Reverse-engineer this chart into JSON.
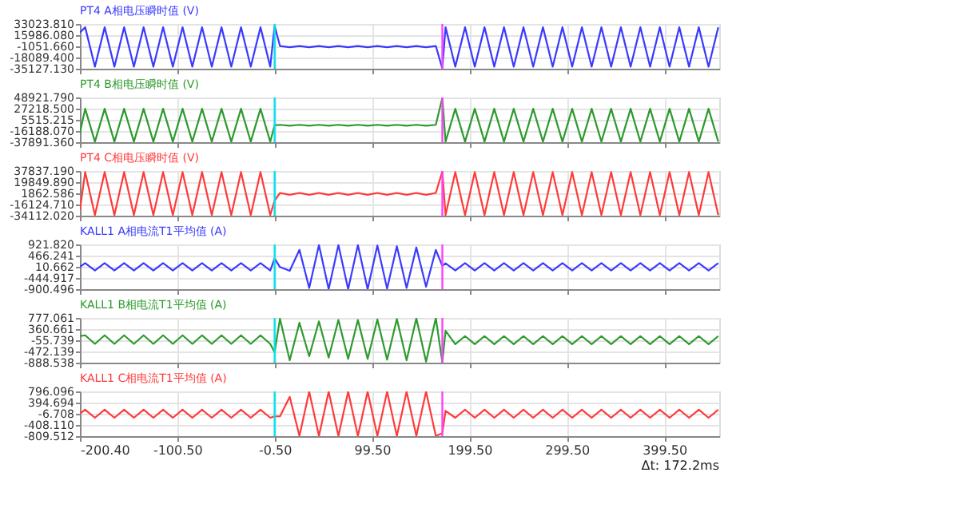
{
  "chart_data": [
    {
      "type": "line",
      "title": "PT4 A相电压瞬时值 (V)",
      "color": "#3a3aff",
      "grid": true,
      "tick_labels": "y",
      "xlim": [
        -200.4,
        456
      ],
      "ylim": [
        -35127.13,
        33023.81
      ],
      "xticks": [
        {
          "value": -200.4,
          "label": null
        },
        {
          "value": -100.5,
          "label": null
        },
        {
          "value": -0.5,
          "label": null
        },
        {
          "value": 99.5,
          "label": null
        },
        {
          "value": 199.5,
          "label": null
        },
        {
          "value": 299.5,
          "label": null
        },
        {
          "value": 399.5,
          "label": null
        }
      ],
      "yticks": [
        {
          "value": -35127.13,
          "label": "-35127.130"
        },
        {
          "value": -18089.4,
          "label": "-18089.400"
        },
        {
          "value": -1051.66,
          "label": "-1051.660"
        },
        {
          "value": 15986.08,
          "label": "15986.080"
        },
        {
          "value": 33023.81,
          "label": "33023.810"
        }
      ],
      "ref_lines": [
        {
          "axis": "x",
          "value": -0.5,
          "color": "#00e5ee"
        },
        {
          "axis": "x",
          "value": 171.7,
          "color": "#ff40ff"
        }
      ],
      "x": [
        -200.4,
        -195,
        -185,
        -175,
        -165,
        -155,
        -145,
        -135,
        -125,
        -115,
        -105,
        -95,
        -85,
        -75,
        -65,
        -55,
        -45,
        -35,
        -25,
        -15,
        -5,
        -0.5,
        5,
        15,
        25,
        35,
        45,
        55,
        65,
        75,
        85,
        95,
        105,
        115,
        125,
        135,
        145,
        155,
        165,
        171.7,
        175,
        185,
        195,
        205,
        215,
        225,
        235,
        245,
        255,
        265,
        275,
        285,
        295,
        305,
        315,
        325,
        335,
        345,
        355,
        365,
        375,
        385,
        395,
        405,
        415,
        425,
        435,
        445,
        455
      ],
      "values": [
        20000,
        28000,
        -32000,
        28000,
        -32000,
        28000,
        -32000,
        28000,
        -32000,
        28000,
        -32000,
        28000,
        -32000,
        28000,
        -32000,
        28000,
        -32000,
        28000,
        -32000,
        28000,
        -32000,
        30000,
        -500,
        -2500,
        -500,
        -2500,
        -500,
        -2500,
        -500,
        -2500,
        -500,
        -2500,
        -500,
        -2500,
        -500,
        -2500,
        -500,
        -2500,
        -500,
        -35000,
        28000,
        -32000,
        28000,
        -32000,
        28000,
        -32000,
        28000,
        -32000,
        28000,
        -32000,
        28000,
        -32000,
        28000,
        -32000,
        28000,
        -32000,
        28000,
        -32000,
        28000,
        -32000,
        28000,
        -32000,
        28000,
        -32000,
        28000,
        -32000,
        28000,
        -32000,
        28000
      ]
    },
    {
      "type": "line",
      "title": "PT4 B相电压瞬时值 (V)",
      "color": "#2e9a2e",
      "grid": true,
      "tick_labels": "y",
      "xlim": [
        -200.4,
        456
      ],
      "ylim": [
        -37891.36,
        48921.79
      ],
      "xticks": [
        {
          "value": -200.4,
          "label": null
        },
        {
          "value": -100.5,
          "label": null
        },
        {
          "value": -0.5,
          "label": null
        },
        {
          "value": 99.5,
          "label": null
        },
        {
          "value": 199.5,
          "label": null
        },
        {
          "value": 299.5,
          "label": null
        },
        {
          "value": 399.5,
          "label": null
        }
      ],
      "yticks": [
        {
          "value": -37891.36,
          "label": "-37891.360"
        },
        {
          "value": -16188.07,
          "label": "-16188.070"
        },
        {
          "value": 5515.215,
          "label": "5515.215"
        },
        {
          "value": 27218.5,
          "label": "27218.500"
        },
        {
          "value": 48921.79,
          "label": "48921.790"
        }
      ],
      "ref_lines": [
        {
          "axis": "x",
          "value": -0.5,
          "color": "#00e5ee"
        },
        {
          "axis": "x",
          "value": 171.7,
          "color": "#ff40ff"
        }
      ],
      "x": [
        -200.4,
        -195,
        -185,
        -175,
        -165,
        -155,
        -145,
        -135,
        -125,
        -115,
        -105,
        -95,
        -85,
        -75,
        -65,
        -55,
        -45,
        -35,
        -25,
        -15,
        -5,
        -0.5,
        5,
        15,
        25,
        35,
        45,
        55,
        65,
        75,
        85,
        95,
        105,
        115,
        125,
        135,
        145,
        155,
        165,
        171.7,
        175,
        185,
        195,
        205,
        215,
        225,
        235,
        245,
        255,
        265,
        275,
        285,
        295,
        305,
        315,
        325,
        335,
        345,
        355,
        365,
        375,
        385,
        395,
        405,
        415,
        425,
        435,
        445,
        455
      ],
      "values": [
        -20000,
        27000,
        -37000,
        27000,
        -37000,
        27000,
        -37000,
        27000,
        -37000,
        27000,
        -37000,
        27000,
        -37000,
        27000,
        -37000,
        27000,
        -37000,
        27000,
        -37000,
        27000,
        -37000,
        -5000,
        -4200,
        -5800,
        -4200,
        -5800,
        -4200,
        -5800,
        -4200,
        -5800,
        -4200,
        -5800,
        -4200,
        -5800,
        -4200,
        -5800,
        -4200,
        -5800,
        -4200,
        48000,
        -37000,
        27000,
        -37000,
        27000,
        -37000,
        27000,
        -37000,
        27000,
        -37000,
        27000,
        -37000,
        27000,
        -37000,
        27000,
        -37000,
        27000,
        -37000,
        27000,
        -37000,
        27000,
        -37000,
        27000,
        -37000,
        27000,
        -37000,
        27000,
        -37000,
        27000,
        -37000
      ]
    },
    {
      "type": "line",
      "title": "PT4 C相电压瞬时值 (V)",
      "color": "#ff3a3a",
      "grid": true,
      "tick_labels": "y",
      "xlim": [
        -200.4,
        456
      ],
      "ylim": [
        -34112.02,
        37837.19
      ],
      "xticks": [
        {
          "value": -200.4,
          "label": null
        },
        {
          "value": -100.5,
          "label": null
        },
        {
          "value": -0.5,
          "label": null
        },
        {
          "value": 99.5,
          "label": null
        },
        {
          "value": 199.5,
          "label": null
        },
        {
          "value": 299.5,
          "label": null
        },
        {
          "value": 399.5,
          "label": null
        }
      ],
      "yticks": [
        {
          "value": -34112.02,
          "label": "-34112.020"
        },
        {
          "value": -16124.71,
          "label": "-16124.710"
        },
        {
          "value": 1862.586,
          "label": "1862.586"
        },
        {
          "value": 19849.89,
          "label": "19849.890"
        },
        {
          "value": 37837.19,
          "label": "37837.190"
        }
      ],
      "ref_lines": [
        {
          "axis": "x",
          "value": -0.5,
          "color": "#00e5ee"
        },
        {
          "axis": "x",
          "value": 171.7,
          "color": "#ff40ff"
        }
      ],
      "x": [
        -200.4,
        -195,
        -185,
        -175,
        -165,
        -155,
        -145,
        -135,
        -125,
        -115,
        -105,
        -95,
        -85,
        -75,
        -65,
        -55,
        -45,
        -35,
        -25,
        -15,
        -5,
        -0.5,
        5,
        15,
        25,
        35,
        45,
        55,
        65,
        75,
        85,
        95,
        105,
        115,
        125,
        135,
        145,
        155,
        165,
        171.7,
        175,
        185,
        195,
        205,
        215,
        225,
        235,
        245,
        255,
        265,
        275,
        285,
        295,
        305,
        315,
        325,
        335,
        345,
        355,
        365,
        375,
        385,
        395,
        405,
        415,
        425,
        435,
        445,
        455
      ],
      "values": [
        -25000,
        36000,
        -33000,
        36000,
        -33000,
        36000,
        -33000,
        36000,
        -33000,
        36000,
        -33000,
        36000,
        -33000,
        36000,
        -33000,
        36000,
        -33000,
        36000,
        -33000,
        36000,
        -33000,
        -10000,
        2500,
        -500,
        2500,
        -500,
        2500,
        -500,
        2500,
        -500,
        2500,
        -500,
        2500,
        -500,
        2500,
        -500,
        2500,
        -500,
        2500,
        37000,
        -33000,
        36000,
        -33000,
        36000,
        -33000,
        36000,
        -33000,
        36000,
        -33000,
        36000,
        -33000,
        36000,
        -33000,
        36000,
        -33000,
        36000,
        -33000,
        36000,
        -33000,
        36000,
        -33000,
        36000,
        -33000,
        36000,
        -33000,
        36000,
        -33000,
        36000,
        -33000
      ]
    },
    {
      "type": "line",
      "title": "KALL1 A相电流T1平均值 (A)",
      "color": "#3a3aff",
      "grid": true,
      "tick_labels": "y",
      "xlim": [
        -200.4,
        456
      ],
      "ylim": [
        -900.496,
        921.82
      ],
      "xticks": [
        {
          "value": -200.4,
          "label": null
        },
        {
          "value": -100.5,
          "label": null
        },
        {
          "value": -0.5,
          "label": null
        },
        {
          "value": 99.5,
          "label": null
        },
        {
          "value": 199.5,
          "label": null
        },
        {
          "value": 299.5,
          "label": null
        },
        {
          "value": 399.5,
          "label": null
        }
      ],
      "yticks": [
        {
          "value": -900.496,
          "label": "-900.496"
        },
        {
          "value": -444.917,
          "label": "-444.917"
        },
        {
          "value": 10.662,
          "label": "10.662"
        },
        {
          "value": 466.241,
          "label": "466.241"
        },
        {
          "value": 921.82,
          "label": "921.820"
        }
      ],
      "ref_lines": [
        {
          "axis": "x",
          "value": -0.5,
          "color": "#00e5ee"
        },
        {
          "axis": "x",
          "value": 171.7,
          "color": "#ff40ff"
        }
      ],
      "x": [
        -200.4,
        -195,
        -185,
        -175,
        -165,
        -155,
        -145,
        -135,
        -125,
        -115,
        -105,
        -95,
        -85,
        -75,
        -65,
        -55,
        -45,
        -35,
        -25,
        -15,
        -5,
        -0.5,
        5,
        15,
        25,
        35,
        45,
        55,
        65,
        75,
        85,
        95,
        105,
        115,
        125,
        135,
        145,
        155,
        165,
        171.7,
        175,
        185,
        195,
        205,
        215,
        225,
        235,
        245,
        255,
        265,
        275,
        285,
        295,
        305,
        315,
        325,
        335,
        345,
        355,
        365,
        375,
        385,
        395,
        405,
        415,
        425,
        435,
        445,
        455
      ],
      "values": [
        10,
        160,
        -140,
        160,
        -140,
        160,
        -140,
        160,
        -140,
        160,
        -140,
        160,
        -140,
        160,
        -140,
        160,
        -140,
        160,
        -140,
        160,
        -140,
        350,
        0,
        -150,
        700,
        -850,
        900,
        -900,
        900,
        -900,
        900,
        -900,
        880,
        -880,
        850,
        -850,
        800,
        -800,
        700,
        50,
        150,
        -140,
        160,
        -140,
        160,
        -140,
        160,
        -140,
        160,
        -140,
        160,
        -140,
        160,
        -140,
        160,
        -140,
        160,
        -140,
        160,
        -140,
        160,
        -140,
        160,
        -140,
        160,
        -140,
        160,
        -140,
        160
      ]
    },
    {
      "type": "line",
      "title": "KALL1 B相电流T1平均值 (A)",
      "color": "#2e9a2e",
      "grid": true,
      "tick_labels": "y",
      "xlim": [
        -200.4,
        456
      ],
      "ylim": [
        -888.538,
        777.061
      ],
      "xticks": [
        {
          "value": -200.4,
          "label": null
        },
        {
          "value": -100.5,
          "label": null
        },
        {
          "value": -0.5,
          "label": null
        },
        {
          "value": 99.5,
          "label": null
        },
        {
          "value": 199.5,
          "label": null
        },
        {
          "value": 299.5,
          "label": null
        },
        {
          "value": 399.5,
          "label": null
        }
      ],
      "yticks": [
        {
          "value": -888.538,
          "label": "-888.538"
        },
        {
          "value": -472.139,
          "label": "-472.139"
        },
        {
          "value": -55.739,
          "label": "-55.739"
        },
        {
          "value": 360.661,
          "label": "360.661"
        },
        {
          "value": 777.061,
          "label": "777.061"
        }
      ],
      "ref_lines": [
        {
          "axis": "x",
          "value": -0.5,
          "color": "#00e5ee"
        },
        {
          "axis": "x",
          "value": 171.7,
          "color": "#ff40ff"
        }
      ],
      "x": [
        -200.4,
        -195,
        -185,
        -175,
        -165,
        -155,
        -145,
        -135,
        -125,
        -115,
        -105,
        -95,
        -85,
        -75,
        -65,
        -55,
        -45,
        -35,
        -25,
        -15,
        -5,
        -0.5,
        5,
        15,
        25,
        35,
        45,
        55,
        65,
        75,
        85,
        95,
        105,
        115,
        125,
        135,
        145,
        155,
        165,
        171.7,
        175,
        185,
        195,
        205,
        215,
        225,
        235,
        245,
        255,
        265,
        275,
        285,
        295,
        305,
        315,
        325,
        335,
        345,
        355,
        365,
        375,
        385,
        395,
        405,
        415,
        425,
        435,
        445,
        455
      ],
      "values": [
        100,
        130,
        -190,
        130,
        -190,
        130,
        -190,
        130,
        -190,
        130,
        -190,
        130,
        -190,
        130,
        -190,
        130,
        -190,
        130,
        -190,
        130,
        -190,
        -500,
        750,
        -800,
        600,
        -650,
        650,
        -700,
        700,
        -750,
        700,
        -750,
        720,
        -780,
        740,
        -800,
        760,
        -850,
        777,
        -880,
        300,
        -200,
        100,
        -200,
        100,
        -200,
        100,
        -200,
        100,
        -200,
        100,
        -200,
        100,
        -200,
        100,
        -200,
        100,
        -200,
        100,
        -200,
        100,
        -200,
        100,
        -200,
        100,
        -200,
        100,
        -200,
        100
      ]
    },
    {
      "type": "line",
      "title": "KALL1 C相电流T1平均值 (A)",
      "color": "#ff3a3a",
      "grid": true,
      "xlim": [
        -200.4,
        456
      ],
      "ylim": [
        -809.512,
        796.096
      ],
      "xticks": [
        {
          "value": -200.4,
          "label": "-200.40"
        },
        {
          "value": -100.5,
          "label": "-100.50"
        },
        {
          "value": -0.5,
          "label": "-0.50"
        },
        {
          "value": 99.5,
          "label": "99.50"
        },
        {
          "value": 199.5,
          "label": "199.50"
        },
        {
          "value": 299.5,
          "label": "299.50"
        },
        {
          "value": 399.5,
          "label": "399.50"
        }
      ],
      "yticks": [
        {
          "value": -809.512,
          "label": "-809.512"
        },
        {
          "value": -408.11,
          "label": "-408.110"
        },
        {
          "value": -6.708,
          "label": "-6.708"
        },
        {
          "value": 394.694,
          "label": "394.694"
        },
        {
          "value": 796.096,
          "label": "796.096"
        }
      ],
      "ref_lines": [
        {
          "axis": "x",
          "value": -0.5,
          "color": "#00e5ee"
        },
        {
          "axis": "x",
          "value": 171.7,
          "color": "#ff40ff"
        }
      ],
      "annotations": [
        "Δt: 172.2ms"
      ],
      "x": [
        -200.4,
        -195,
        -185,
        -175,
        -165,
        -155,
        -145,
        -135,
        -125,
        -115,
        -105,
        -95,
        -85,
        -75,
        -65,
        -55,
        -45,
        -35,
        -25,
        -15,
        -5,
        -0.5,
        5,
        15,
        25,
        35,
        45,
        55,
        65,
        75,
        85,
        95,
        105,
        115,
        125,
        135,
        145,
        155,
        165,
        171.7,
        175,
        185,
        195,
        205,
        215,
        225,
        235,
        245,
        255,
        265,
        275,
        285,
        295,
        305,
        315,
        325,
        335,
        345,
        355,
        365,
        375,
        385,
        395,
        405,
        415,
        425,
        435,
        445,
        455
      ],
      "values": [
        -6,
        140,
        -150,
        140,
        -150,
        140,
        -150,
        140,
        -150,
        140,
        -150,
        140,
        -150,
        140,
        -150,
        140,
        -150,
        140,
        -150,
        140,
        -150,
        -100,
        -100,
        600,
        -800,
        790,
        -800,
        790,
        -800,
        790,
        -800,
        790,
        -800,
        790,
        -800,
        790,
        -800,
        790,
        -800,
        -700,
        100,
        -150,
        140,
        -150,
        140,
        -150,
        140,
        -150,
        140,
        -150,
        140,
        -150,
        140,
        -150,
        140,
        -150,
        140,
        -150,
        140,
        -150,
        140,
        -150,
        140,
        -150,
        140,
        -150,
        140,
        -150,
        140
      ]
    }
  ]
}
